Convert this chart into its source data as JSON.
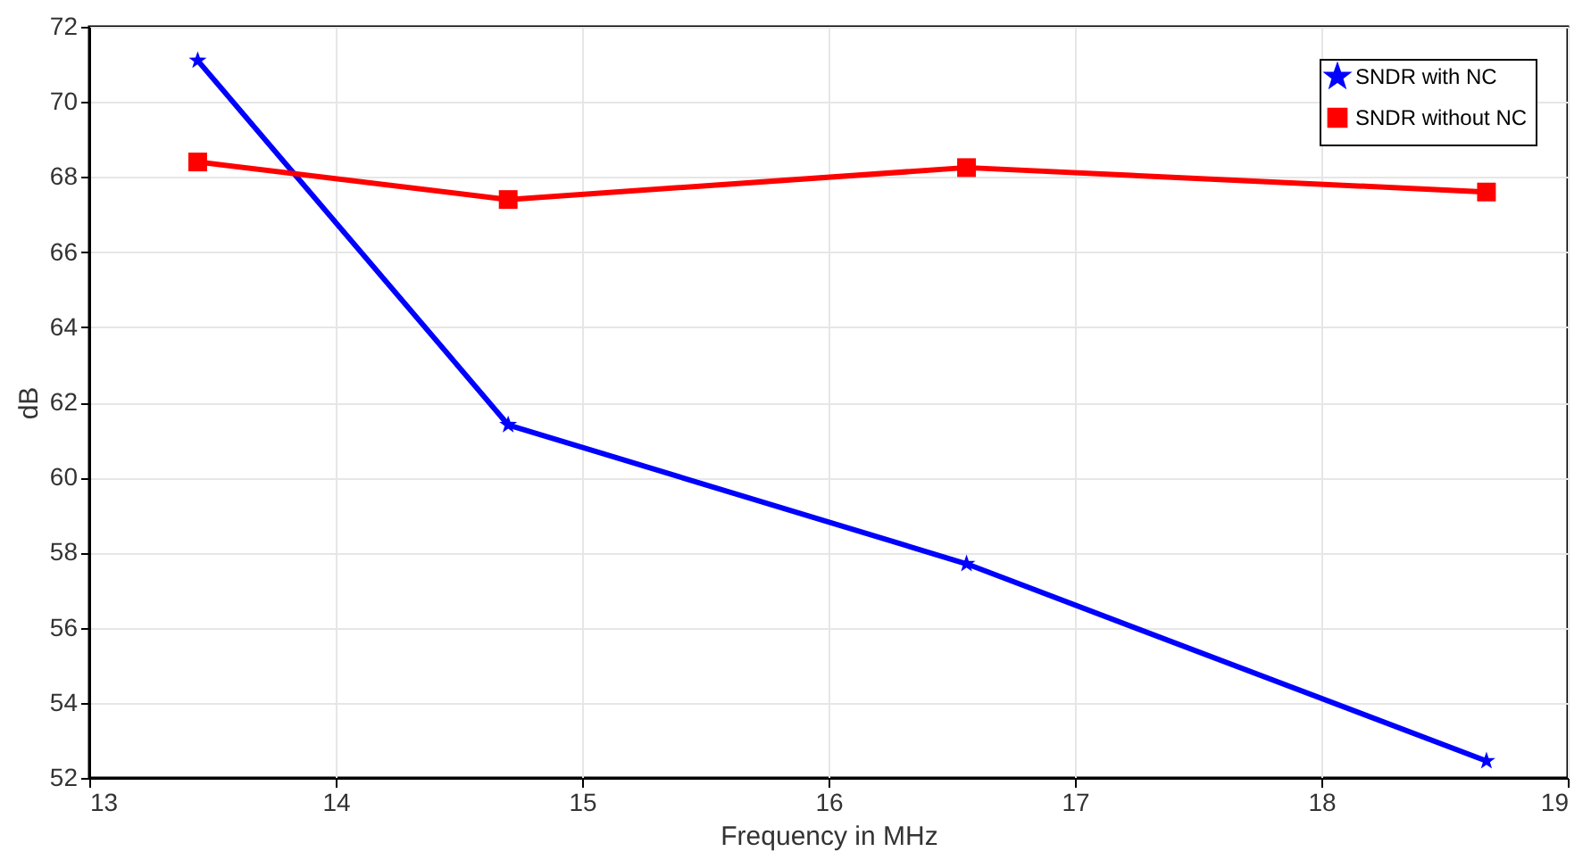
{
  "chart_data": {
    "type": "line",
    "xlabel": "Frequency in MHz",
    "ylabel": "dB",
    "xlim": [
      13,
      19
    ],
    "xticks": [
      13,
      14,
      15,
      16,
      17,
      18,
      19
    ],
    "ylim": [
      52,
      72
    ],
    "yticks": [
      52,
      54,
      56,
      58,
      60,
      62,
      64,
      66,
      68,
      70,
      72
    ],
    "grid": true,
    "legend": "top right",
    "line_style": "solid",
    "series": [
      {
        "name": "SNDR with NC",
        "color": "#0000ff",
        "marker": "star",
        "x": [
          13.44,
          14.7,
          16.56,
          18.67
        ],
        "values": [
          71.1,
          61.4,
          57.7,
          52.45
        ]
      },
      {
        "name": "SNDR without NC",
        "color": "#ff0000",
        "marker": "square",
        "x": [
          13.44,
          14.7,
          16.56,
          18.67
        ],
        "values": [
          68.4,
          67.4,
          68.25,
          67.6
        ]
      }
    ]
  }
}
